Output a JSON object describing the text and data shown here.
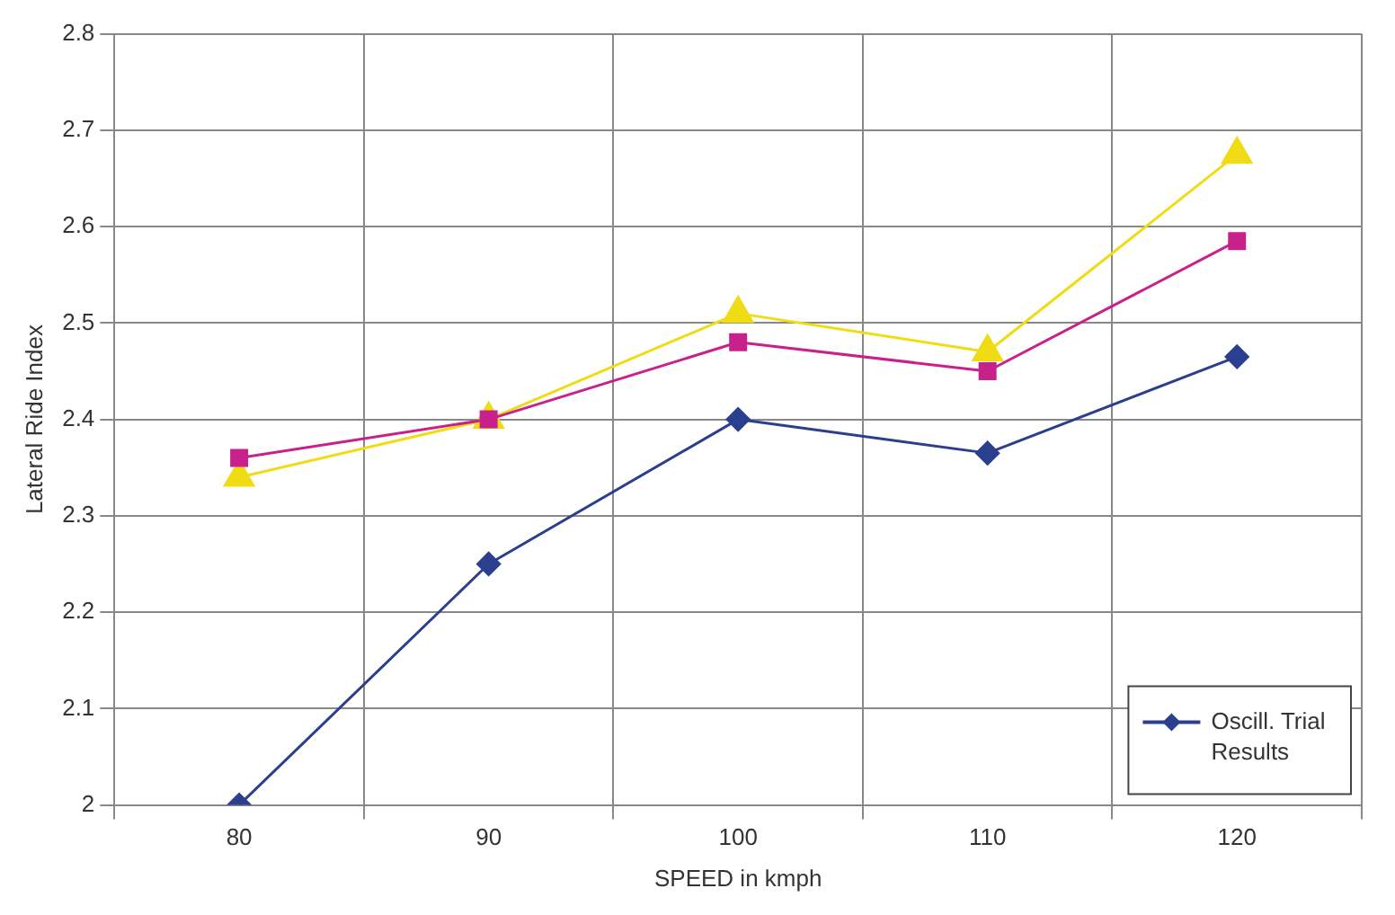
{
  "chart_data": {
    "type": "line",
    "xlabel": "SPEED in kmph",
    "ylabel": "Lateral Ride Index",
    "categories": [
      "80",
      "90",
      "100",
      "110",
      "120"
    ],
    "series": [
      {
        "name": "Oscill. Trial Results",
        "color": "#2b3f8f",
        "marker": "diamond",
        "values": [
          2.0,
          2.25,
          2.4,
          2.365,
          2.465
        ]
      },
      {
        "color": "#c8218c",
        "marker": "square",
        "values": [
          2.36,
          2.4,
          2.48,
          2.45,
          2.585
        ]
      },
      {
        "color": "#f0dc14",
        "marker": "triangle",
        "values": [
          2.34,
          2.4,
          2.51,
          2.47,
          2.675
        ]
      }
    ],
    "ylim": [
      2,
      2.8
    ],
    "yticks": [
      2,
      2.1,
      2.2,
      2.3,
      2.4,
      2.5,
      2.6,
      2.7,
      2.8
    ],
    "grid": true,
    "legend": "bottom right",
    "line_style": "solid"
  }
}
